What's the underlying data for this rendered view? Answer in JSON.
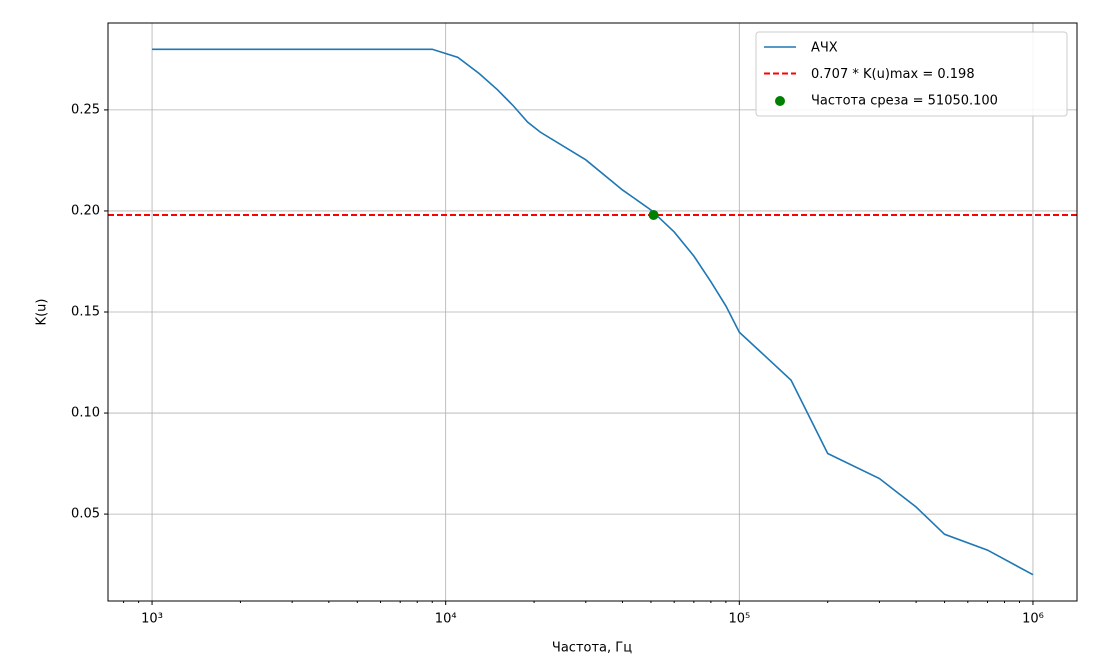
{
  "chart_data": {
    "type": "line",
    "xlabel": "Частота, Гц",
    "ylabel": "K(u)",
    "xscale": "log",
    "grid": true,
    "legend": "upper right",
    "xlim": [
      707.9,
      1412537
    ],
    "ylim": [
      0.007,
      0.293
    ],
    "xticks": [
      {
        "value": 1000,
        "label": "10³"
      },
      {
        "value": 10000,
        "label": "10⁴"
      },
      {
        "value": 100000,
        "label": "10⁵"
      },
      {
        "value": 1000000,
        "label": "10⁶"
      }
    ],
    "yticks": [
      0.05,
      {
        "value": 0.1,
        "label": "0.10"
      },
      0.15,
      {
        "value": 0.2,
        "label": "0.20"
      },
      0.25
    ],
    "series": [
      {
        "name": "АЧХ",
        "color": "#1f77b4",
        "x": [
          1000,
          9000,
          11000,
          13000,
          15000,
          17000,
          19000,
          21000,
          30000,
          40000,
          50000,
          60000,
          70000,
          80000,
          90000,
          100000,
          150000,
          200000,
          300000,
          400000,
          500000,
          700000,
          1000000
        ],
        "values": [
          0.28,
          0.28,
          0.276,
          0.268,
          0.26,
          0.252,
          0.244,
          0.239,
          0.2253,
          0.2104,
          0.2005,
          0.1896,
          0.1777,
          0.165,
          0.153,
          0.14,
          0.1163,
          0.08,
          0.0676,
          0.0535,
          0.04,
          0.0322,
          0.02
        ]
      }
    ],
    "hline": {
      "name": "0.707 * K(u)max = 0.198",
      "value": 0.198,
      "color": "#ff0000"
    },
    "points": {
      "name": "Частота среза = 51050.100",
      "color": "#008000",
      "x": [
        51050.1
      ],
      "values": [
        0.198
      ]
    }
  }
}
